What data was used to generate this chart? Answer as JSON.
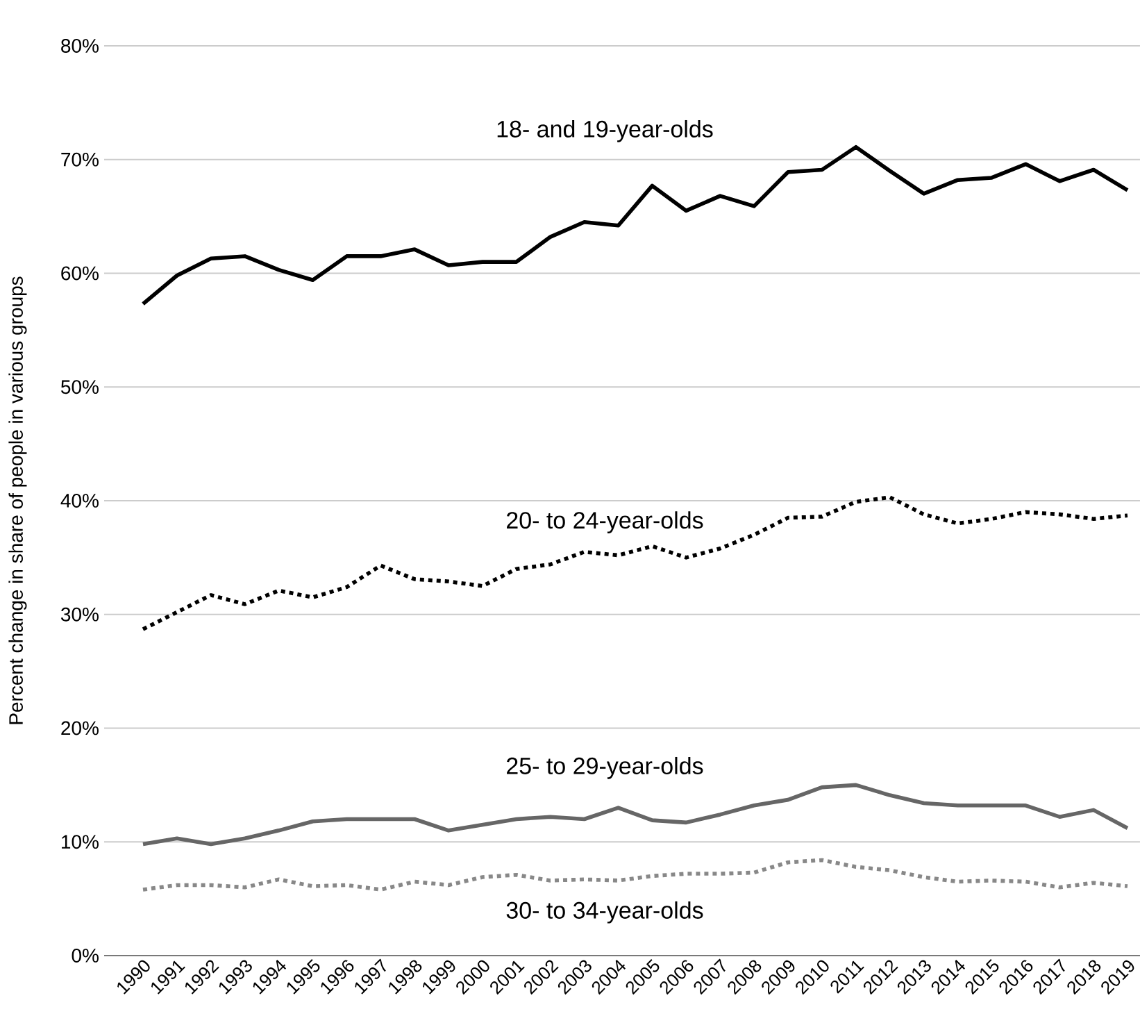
{
  "chart_data": {
    "type": "line",
    "ylabel": "Percent change in share of people in various groups",
    "categories": [
      "1990",
      "1991",
      "1992",
      "1993",
      "1994",
      "1995",
      "1996",
      "1997",
      "1998",
      "1999",
      "2000",
      "2001",
      "2002",
      "2003",
      "2004",
      "2005",
      "2006",
      "2007",
      "2008",
      "2009",
      "2010",
      "2011",
      "2012",
      "2013",
      "2014",
      "2015",
      "2016",
      "2017",
      "2018",
      "2019"
    ],
    "ylim": [
      0,
      80
    ],
    "yticks": [
      {
        "value": 0,
        "label": "0%"
      },
      {
        "value": 10,
        "label": "10%"
      },
      {
        "value": 20,
        "label": "20%"
      },
      {
        "value": 30,
        "label": "30%"
      },
      {
        "value": 40,
        "label": "40%"
      },
      {
        "value": 50,
        "label": "50%"
      },
      {
        "value": 60,
        "label": "60%"
      },
      {
        "value": 70,
        "label": "70%"
      },
      {
        "value": 80,
        "label": "80%"
      }
    ],
    "grid": "y",
    "marker": "none",
    "series": [
      {
        "name": "18- and 19-year-olds",
        "color": "#000000",
        "line_style": "solid",
        "values": [
          57.3,
          59.8,
          61.3,
          61.5,
          60.3,
          59.4,
          61.5,
          61.5,
          62.1,
          60.7,
          61.0,
          61.0,
          63.2,
          64.5,
          64.2,
          67.7,
          65.5,
          66.8,
          65.9,
          68.9,
          69.1,
          71.1,
          69.0,
          67.0,
          68.2,
          68.4,
          69.6,
          68.1,
          69.1,
          67.3
        ]
      },
      {
        "name": "20- to 24-year-olds",
        "color": "#000000",
        "line_style": "dotted",
        "values": [
          28.7,
          30.2,
          31.7,
          30.9,
          32.1,
          31.5,
          32.4,
          34.3,
          33.1,
          32.9,
          32.5,
          34.0,
          34.4,
          35.5,
          35.2,
          36.0,
          35.0,
          35.8,
          37.0,
          38.5,
          38.6,
          39.9,
          40.3,
          38.8,
          38.0,
          38.4,
          39.0,
          38.8,
          38.4,
          38.7
        ]
      },
      {
        "name": "25- to 29-year-olds",
        "color": "#666666",
        "line_style": "solid",
        "values": [
          9.8,
          10.3,
          9.8,
          10.3,
          11.0,
          11.8,
          12.0,
          12.0,
          12.0,
          11.0,
          11.5,
          12.0,
          12.2,
          12.0,
          13.0,
          11.9,
          11.7,
          12.4,
          13.2,
          13.7,
          14.8,
          15.0,
          14.1,
          13.4,
          13.2,
          13.2,
          13.2,
          12.2,
          12.8,
          11.2
        ]
      },
      {
        "name": "30- to 34-year-olds",
        "color": "#888888",
        "line_style": "dotted",
        "values": [
          5.8,
          6.2,
          6.2,
          6.0,
          6.7,
          6.1,
          6.2,
          5.8,
          6.5,
          6.2,
          6.9,
          7.1,
          6.6,
          6.7,
          6.6,
          7.0,
          7.2,
          7.2,
          7.3,
          8.2,
          8.4,
          7.8,
          7.5,
          6.9,
          6.5,
          6.6,
          6.5,
          6.0,
          6.4,
          6.1
        ]
      }
    ]
  }
}
